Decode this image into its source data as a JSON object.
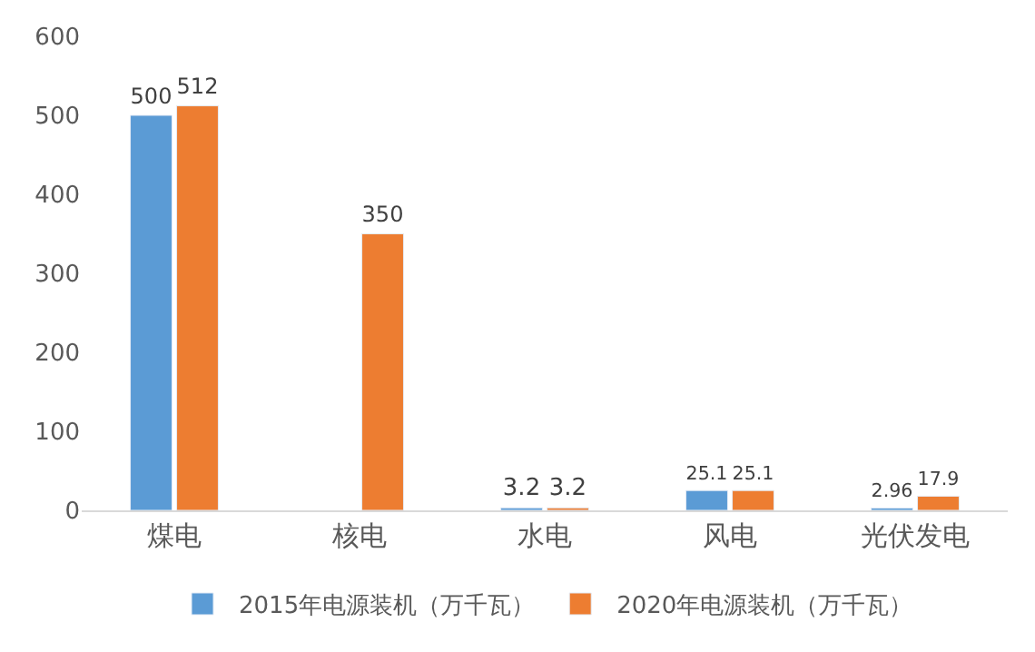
{
  "chart_data": {
    "type": "bar",
    "categories": [
      "煤电",
      "核电",
      "水电",
      "风电",
      "光伏发电"
    ],
    "series": [
      {
        "name": "2015年电源装机（万千瓦）",
        "color": "#5b9bd5",
        "values": [
          500,
          null,
          3.2,
          25.1,
          2.96
        ]
      },
      {
        "name": "2020年电源装机（万千瓦）",
        "color": "#ed7d31",
        "values": [
          512,
          350,
          3.2,
          25.1,
          17.9
        ]
      }
    ],
    "ylim": [
      0,
      600
    ],
    "yticks": [
      0,
      100,
      200,
      300,
      400,
      500,
      600
    ],
    "data_labels": true,
    "legend": "bottom",
    "grid": false
  }
}
